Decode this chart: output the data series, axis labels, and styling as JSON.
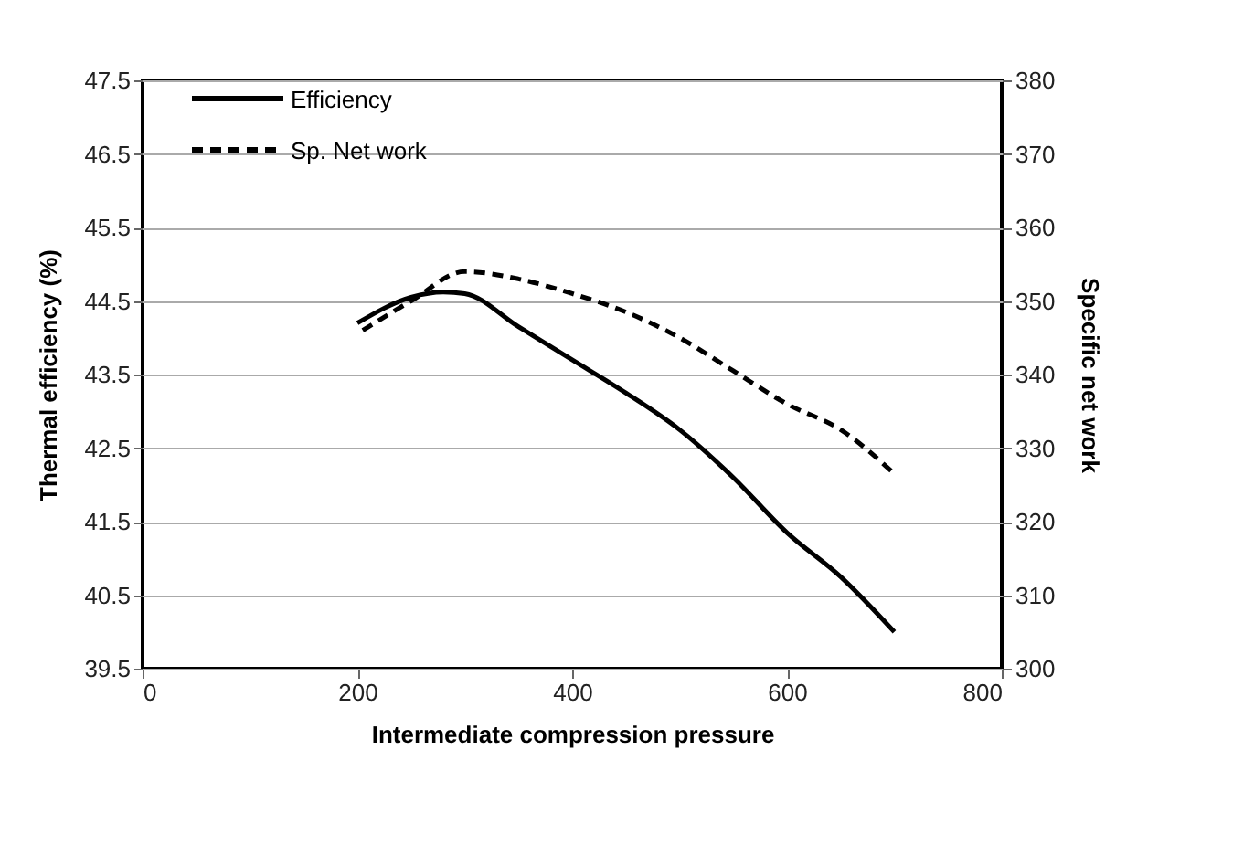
{
  "chart_data": {
    "type": "line",
    "xlabel": "Intermediate compression pressure",
    "ylabel": "Thermal efficiency  (%)",
    "y2label": "Specific net work",
    "series": [
      {
        "name": "Efficiency",
        "color": "#000000",
        "line_style": "solid",
        "x": [
          200,
          250,
          280,
          300,
          350,
          400,
          450,
          500,
          550,
          600,
          650,
          700
        ],
        "values": [
          44.2,
          44.55,
          44.62,
          44.6,
          44.15,
          43.7,
          43.25,
          42.75,
          42.1,
          41.35,
          40.75,
          40.0
        ]
      },
      {
        "name": "Sp. Net work",
        "color": "#000000",
        "line_style": "dashed",
        "axis": "y2",
        "x": [
          205,
          250,
          300,
          350,
          400,
          450,
          500,
          550,
          600,
          650,
          700
        ],
        "values": [
          346,
          350,
          354,
          353,
          351,
          348.5,
          345,
          340.5,
          336,
          332.5,
          326.5
        ]
      }
    ],
    "xlim": [
      0,
      800
    ],
    "xticks": [
      0,
      200,
      400,
      600,
      800
    ],
    "ylim": [
      39.5,
      47.5
    ],
    "yticks": [
      39.5,
      40.5,
      41.5,
      42.5,
      43.5,
      44.5,
      45.5,
      46.5,
      47.5
    ],
    "y2lim": [
      300,
      380
    ],
    "y2ticks": [
      300,
      310,
      320,
      330,
      340,
      350,
      360,
      370,
      380
    ],
    "grid": "y",
    "legend": "top left",
    "marker": "none"
  }
}
